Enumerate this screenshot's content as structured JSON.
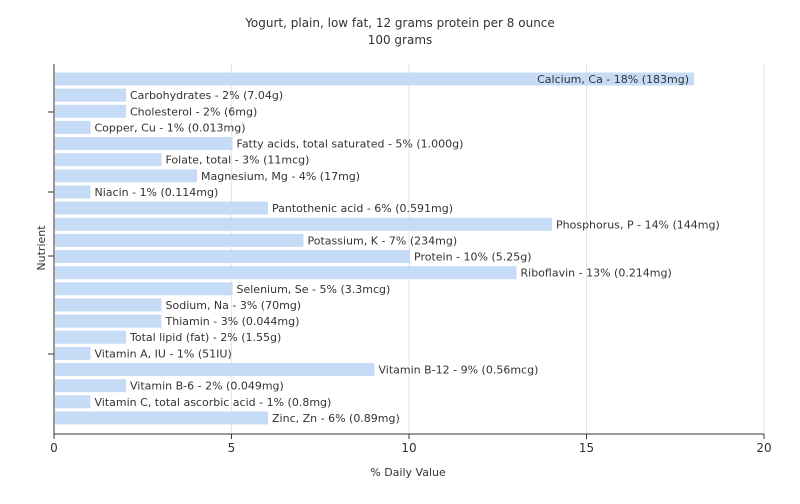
{
  "chart_data": {
    "type": "bar",
    "orientation": "horizontal",
    "title": "Yogurt, plain, low fat, 12 grams protein per 8 ounce",
    "subtitle": "100 grams",
    "xlabel": "% Daily Value",
    "ylabel": "Nutrient",
    "xlim": [
      0,
      20
    ],
    "xticks": [
      0,
      5,
      10,
      15,
      20
    ],
    "grid": true,
    "bar_color": "#c6dcf6",
    "categories": [
      "Calcium, Ca",
      "Carbohydrates",
      "Cholesterol",
      "Copper, Cu",
      "Fatty acids, total saturated",
      "Folate, total",
      "Magnesium, Mg",
      "Niacin",
      "Pantothenic acid",
      "Phosphorus, P",
      "Potassium, K",
      "Protein",
      "Riboflavin",
      "Selenium, Se",
      "Sodium, Na",
      "Thiamin",
      "Total lipid (fat)",
      "Vitamin A, IU",
      "Vitamin B-12",
      "Vitamin B-6",
      "Vitamin C, total ascorbic acid",
      "Zinc, Zn"
    ],
    "values": [
      18,
      2,
      2,
      1,
      5,
      3,
      4,
      1,
      6,
      14,
      7,
      10,
      13,
      5,
      3,
      3,
      2,
      1,
      9,
      2,
      1,
      6
    ],
    "labels": [
      "Calcium, Ca - 18% (183mg)",
      "Carbohydrates - 2% (7.04g)",
      "Cholesterol - 2% (6mg)",
      "Copper, Cu - 1% (0.013mg)",
      "Fatty acids, total saturated - 5% (1.000g)",
      "Folate, total - 3% (11mcg)",
      "Magnesium, Mg - 4% (17mg)",
      "Niacin - 1% (0.114mg)",
      "Pantothenic acid - 6% (0.591mg)",
      "Phosphorus, P - 14% (144mg)",
      "Potassium, K - 7% (234mg)",
      "Protein - 10% (5.25g)",
      "Riboflavin - 13% (0.214mg)",
      "Selenium, Se - 5% (3.3mcg)",
      "Sodium, Na - 3% (70mg)",
      "Thiamin - 3% (0.044mg)",
      "Total lipid (fat) - 2% (1.55g)",
      "Vitamin A, IU - 1% (51IU)",
      "Vitamin B-12 - 9% (0.56mcg)",
      "Vitamin B-6 - 2% (0.049mg)",
      "Vitamin C, total ascorbic acid - 1% (0.8mg)",
      "Zinc, Zn - 6% (0.89mg)"
    ]
  }
}
